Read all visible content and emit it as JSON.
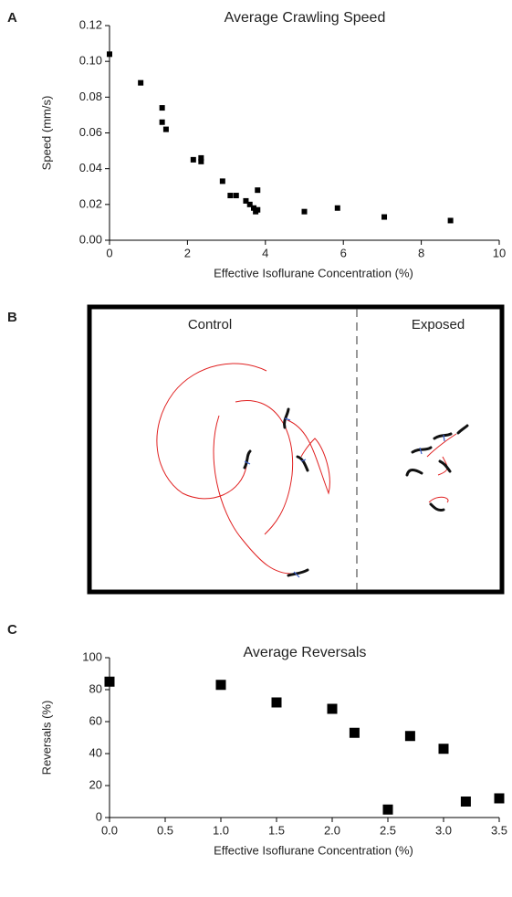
{
  "panel_labels": [
    "A",
    "B",
    "C"
  ],
  "chart_data": [
    {
      "type": "scatter",
      "title": "Average Crawling Speed",
      "xlabel": "Effective Isoflurane Concentration (%)",
      "ylabel": "Speed (mm/s)",
      "color": "#000000",
      "x": [
        0,
        0.8,
        1.35,
        1.35,
        1.45,
        2.15,
        2.35,
        2.35,
        2.9,
        3.1,
        3.25,
        3.5,
        3.6,
        3.7,
        3.75,
        3.8,
        3.8,
        5.0,
        5.85,
        7.05,
        8.75
      ],
      "values": [
        0.104,
        0.088,
        0.074,
        0.066,
        0.062,
        0.045,
        0.046,
        0.044,
        0.033,
        0.025,
        0.025,
        0.022,
        0.02,
        0.018,
        0.016,
        0.017,
        0.028,
        0.016,
        0.018,
        0.013,
        0.011
      ],
      "xlim": [
        0,
        10
      ],
      "xticks": [
        0,
        2,
        4,
        6,
        8,
        10
      ],
      "ylim": [
        0,
        0.12
      ],
      "yticks": [
        {
          "value": 0,
          "label": "0.00"
        },
        0.02,
        0.04,
        0.06,
        0.08,
        {
          "value": 0.1,
          "label": "0.10"
        },
        0.12
      ]
    },
    {
      "type": "scatter",
      "title": "Average Reversals",
      "xlabel": "Effective Isoflurane Concentration (%)",
      "ylabel": "Reversals (%)",
      "color": "#000000",
      "x": [
        0,
        1,
        1.5,
        2,
        2.2,
        2.5,
        2.7,
        3,
        3.2,
        3.5
      ],
      "values": [
        85,
        83,
        72,
        68,
        53,
        5,
        51,
        43,
        10,
        12
      ],
      "xlim": [
        0,
        3.5
      ],
      "xticks": [
        {
          "value": 0,
          "label": "0.0"
        },
        0.5,
        {
          "value": 1,
          "label": "1.0"
        },
        1.5,
        {
          "value": 2,
          "label": "2.0"
        },
        2.5,
        {
          "value": 3,
          "label": "3.0"
        },
        3.5
      ],
      "ylim": [
        0,
        100
      ],
      "yticks": [
        0,
        20,
        40,
        60,
        80,
        100
      ]
    }
  ],
  "diagram": {
    "left_label": "Control",
    "right_label": "Exposed"
  }
}
